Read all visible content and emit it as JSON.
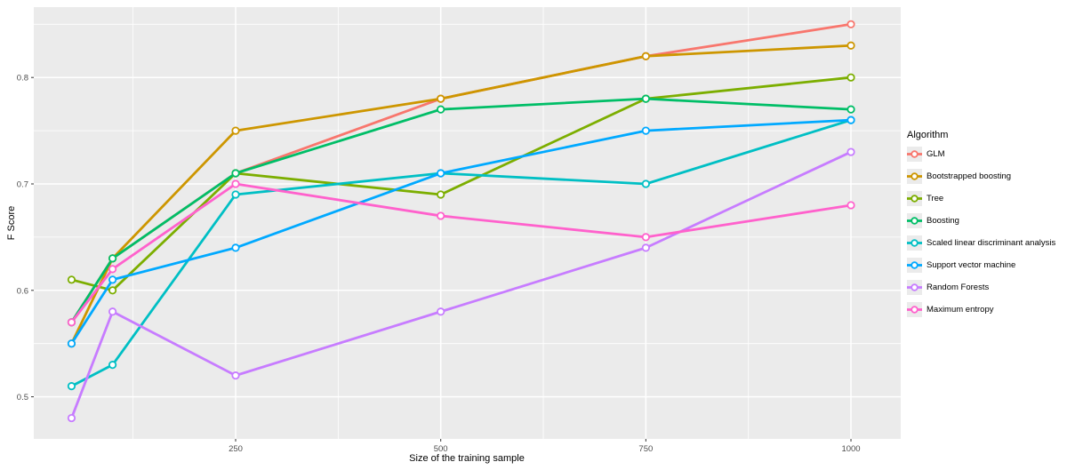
{
  "figure": {
    "background": "#FFFFFF",
    "panel_background": "#EBEBEB",
    "gridline_color": "#FFFFFF",
    "axis_text_color": "#4D4D4D",
    "legend_key_background": "#EBEBEB"
  },
  "chart_data": {
    "type": "line",
    "title": "",
    "xlabel": "Size of the training sample",
    "ylabel": "F Score",
    "legend_title": "Algorithm",
    "legend_position": "right",
    "grid": true,
    "marker": "open-circle",
    "x": [
      50,
      100,
      250,
      500,
      750,
      1000
    ],
    "x_tick_values": [
      250,
      500,
      750,
      1000
    ],
    "x_tick_labels": [
      "250",
      "500",
      "750",
      "1000"
    ],
    "x_minor_values": [
      125,
      375,
      625,
      875
    ],
    "y_tick_values": [
      0.5,
      0.6,
      0.7,
      0.8
    ],
    "y_tick_labels": [
      "0.5",
      "0.6",
      "0.7",
      "0.8"
    ],
    "y_minor_values": [
      0.55,
      0.65,
      0.75,
      0.85
    ],
    "xlim": [
      3,
      1058
    ],
    "ylim": [
      0.464,
      0.866
    ],
    "series": [
      {
        "name": "GLM",
        "color": "#F8766D",
        "values": [
          0.57,
          0.63,
          0.71,
          0.78,
          0.82,
          0.85
        ]
      },
      {
        "name": "Bootstrapped boosting",
        "color": "#CD9600",
        "values": [
          0.55,
          0.63,
          0.75,
          0.78,
          0.82,
          0.83
        ]
      },
      {
        "name": "Tree",
        "color": "#7CAE00",
        "values": [
          0.61,
          0.6,
          0.71,
          0.69,
          0.78,
          0.8
        ]
      },
      {
        "name": "Boosting",
        "color": "#00BE67",
        "values": [
          0.57,
          0.63,
          0.71,
          0.77,
          0.78,
          0.77
        ]
      },
      {
        "name": "Scaled linear discriminant analysis",
        "color": "#00BFC4",
        "values": [
          0.51,
          0.53,
          0.69,
          0.71,
          0.7,
          0.76
        ]
      },
      {
        "name": "Support vector machine",
        "color": "#00A9FF",
        "values": [
          0.55,
          0.61,
          0.64,
          0.71,
          0.75,
          0.76
        ]
      },
      {
        "name": "Random Forests",
        "color": "#C77CFF",
        "values": [
          0.48,
          0.58,
          0.52,
          0.58,
          0.64,
          0.73
        ]
      },
      {
        "name": "Maximum entropy",
        "color": "#FF61CC",
        "values": [
          0.57,
          0.62,
          0.7,
          0.67,
          0.65,
          0.68
        ]
      }
    ]
  }
}
